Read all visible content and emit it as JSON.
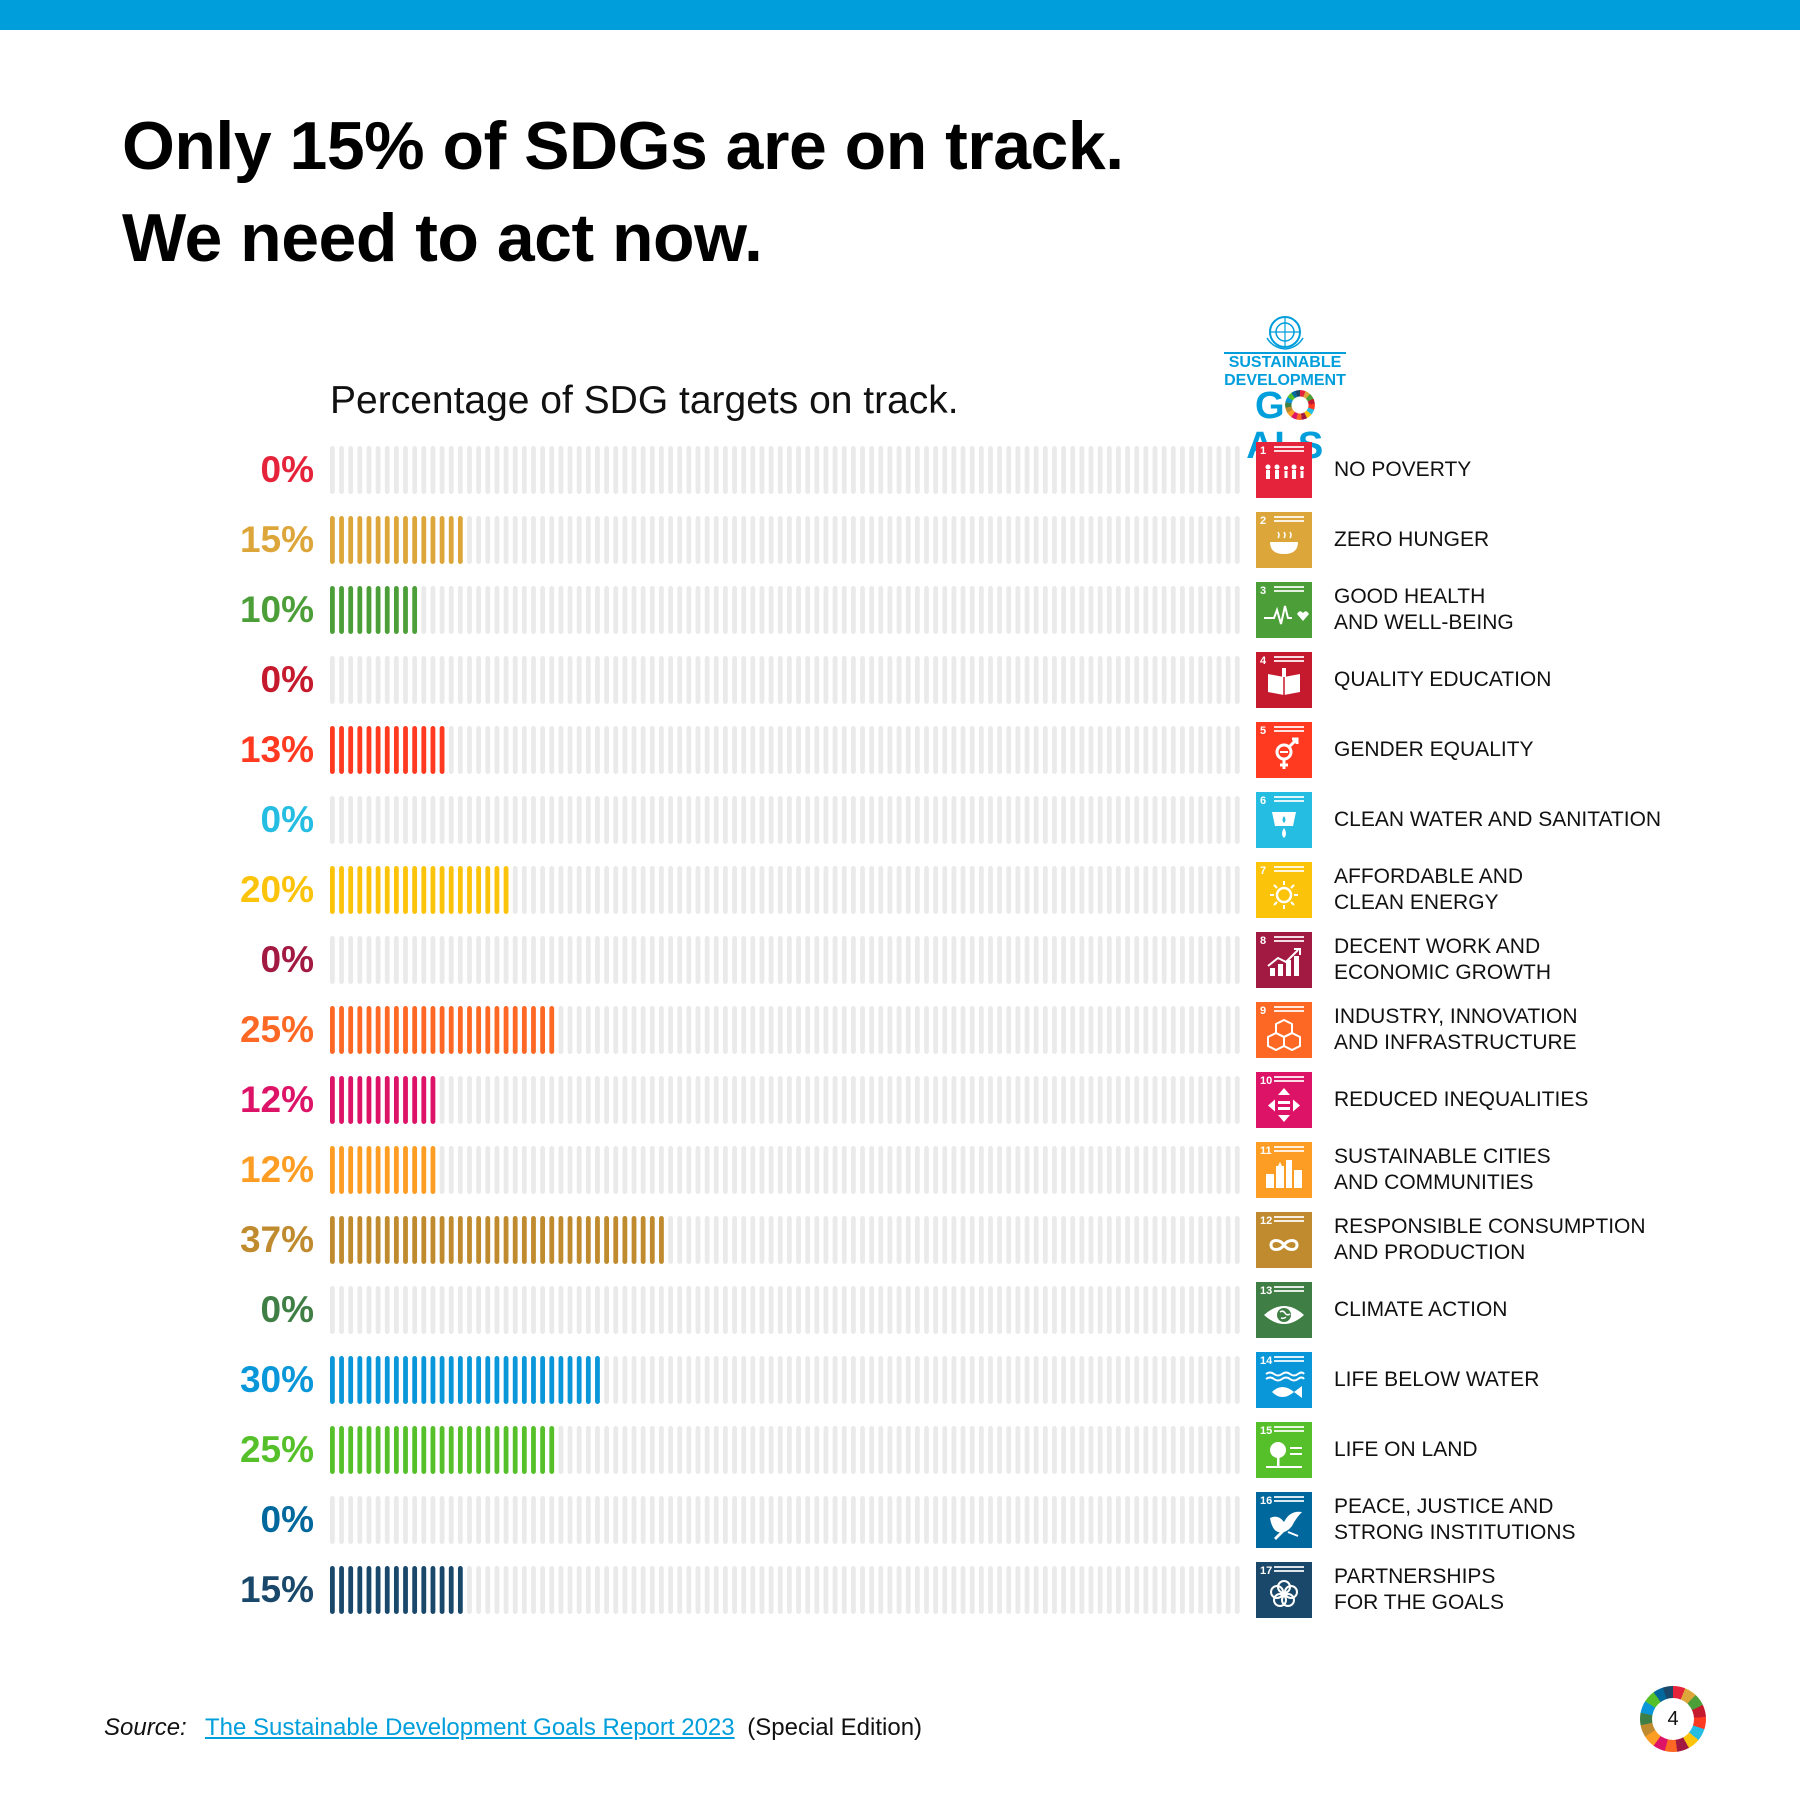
{
  "headline": {
    "line1": "Only 15% of SDGs are on track.",
    "line2": "We need to act now."
  },
  "logo": {
    "line1": "SUSTAINABLE",
    "line2": "DEVELOPMENT",
    "line3_pre": "G",
    "line3_post": "ALS"
  },
  "page_number": "4",
  "source": {
    "label": "Source:",
    "link_text": "The Sustainable Development Goals Report 2023",
    "suffix": "(Special Edition)"
  },
  "colors": {
    "top_band": "#009edb",
    "empty_bar": "#eaeaea"
  },
  "chart_data": {
    "type": "bar",
    "orientation": "horizontal",
    "title": "Percentage of SDG targets on track.",
    "xlim": [
      0,
      100
    ],
    "unit": "%",
    "grid": false,
    "legend": "none",
    "goals": [
      {
        "number": "1",
        "label_lines": [
          "NO POVERTY"
        ],
        "value": 0,
        "value_label": "0%",
        "color": "#e5243b",
        "icon": "family-icon"
      },
      {
        "number": "2",
        "label_lines": [
          "ZERO HUNGER"
        ],
        "value": 15,
        "value_label": "15%",
        "color": "#dda63a",
        "icon": "food-bowl-icon"
      },
      {
        "number": "3",
        "label_lines": [
          "GOOD HEALTH",
          "AND WELL-BEING"
        ],
        "value": 10,
        "value_label": "10%",
        "color": "#4c9f38",
        "icon": "heartbeat-icon"
      },
      {
        "number": "4",
        "label_lines": [
          "QUALITY EDUCATION"
        ],
        "value": 0,
        "value_label": "0%",
        "color": "#c5192d",
        "icon": "book-icon"
      },
      {
        "number": "5",
        "label_lines": [
          "GENDER EQUALITY"
        ],
        "value": 13,
        "value_label": "13%",
        "color": "#ff3a21",
        "icon": "gender-icon"
      },
      {
        "number": "6",
        "label_lines": [
          "CLEAN WATER AND SANITATION"
        ],
        "value": 0,
        "value_label": "0%",
        "color": "#26bde2",
        "icon": "water-drop-icon"
      },
      {
        "number": "7",
        "label_lines": [
          "AFFORDABLE AND",
          "CLEAN ENERGY"
        ],
        "value": 20,
        "value_label": "20%",
        "color": "#fcc30b",
        "icon": "sun-icon"
      },
      {
        "number": "8",
        "label_lines": [
          "DECENT WORK AND",
          "ECONOMIC GROWTH"
        ],
        "value": 0,
        "value_label": "0%",
        "color": "#a21942",
        "icon": "growth-chart-icon"
      },
      {
        "number": "9",
        "label_lines": [
          "INDUSTRY, INNOVATION",
          "AND INFRASTRUCTURE"
        ],
        "value": 25,
        "value_label": "25%",
        "color": "#fd6925",
        "icon": "cubes-icon"
      },
      {
        "number": "10",
        "label_lines": [
          "REDUCED INEQUALITIES"
        ],
        "value": 12,
        "value_label": "12%",
        "color": "#dd1367",
        "icon": "equality-arrows-icon"
      },
      {
        "number": "11",
        "label_lines": [
          "SUSTAINABLE CITIES",
          "AND COMMUNITIES"
        ],
        "value": 12,
        "value_label": "12%",
        "color": "#fd9d24",
        "icon": "city-icon"
      },
      {
        "number": "12",
        "label_lines": [
          "RESPONSIBLE CONSUMPTION",
          "AND PRODUCTION"
        ],
        "value": 37,
        "value_label": "37%",
        "color": "#bf8b2e",
        "icon": "infinity-icon"
      },
      {
        "number": "13",
        "label_lines": [
          "CLIMATE ACTION"
        ],
        "value": 0,
        "value_label": "0%",
        "color": "#3f7e44",
        "icon": "eye-globe-icon"
      },
      {
        "number": "14",
        "label_lines": [
          "LIFE BELOW WATER"
        ],
        "value": 30,
        "value_label": "30%",
        "color": "#0a97d9",
        "icon": "fish-icon"
      },
      {
        "number": "15",
        "label_lines": [
          "LIFE ON LAND"
        ],
        "value": 25,
        "value_label": "25%",
        "color": "#56c02b",
        "icon": "tree-icon"
      },
      {
        "number": "16",
        "label_lines": [
          "PEACE, JUSTICE AND",
          "STRONG INSTITUTIONS"
        ],
        "value": 0,
        "value_label": "0%",
        "color": "#00689d",
        "icon": "dove-icon"
      },
      {
        "number": "17",
        "label_lines": [
          "PARTNERSHIPS",
          "FOR THE GOALS"
        ],
        "value": 15,
        "value_label": "15%",
        "color": "#19486a",
        "icon": "flower-icon"
      }
    ]
  }
}
